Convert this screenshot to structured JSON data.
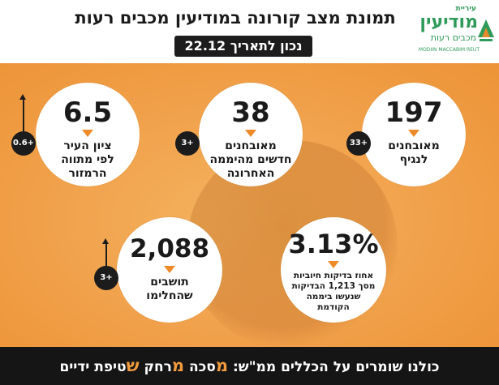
{
  "header": {
    "title": "תמונת מצב קורונה במודיעין מכבים רעות",
    "date_label": "נכון לתאריך 22.12"
  },
  "logo": {
    "top_word": "עיריית",
    "main_word": "מודיעין",
    "sub_word": "מכבים רעות",
    "latin": "MODIIN MACCABIM REUT"
  },
  "cards": [
    {
      "value": "197",
      "label": "מאובחנים\nלנגיף",
      "delta": "+33"
    },
    {
      "value": "38",
      "label": "מאובחנים\nחדשים מהיממה\nהאחרונה",
      "delta": "+3"
    },
    {
      "value": "6.5",
      "label": "ציון העיר\nלפי מתווה\nהרמזור",
      "delta": "+0.6"
    },
    {
      "value": "3.13%",
      "label": "אחוז בדיקות חיוביות\nמסך 1,213 הבדיקות\nשנעשו ביממה\nהקודמת"
    },
    {
      "value": "2,088",
      "label": "תושבים\nשהחלימו",
      "delta": "+3"
    }
  ],
  "footer": {
    "lead": "כולנו שומרים על הכללים ממ\"ש:",
    "m1_letter": "מ",
    "m1_rest": "סכה",
    "m2_letter": "מ",
    "m2_rest": "רחק",
    "s_letter": "ש",
    "s_rest": "טיפת ידיים"
  },
  "colors": {
    "accent": "#f19b3d",
    "background": "#f1a04a",
    "dark": "#151515",
    "logo_green": "#2f9a5a"
  }
}
